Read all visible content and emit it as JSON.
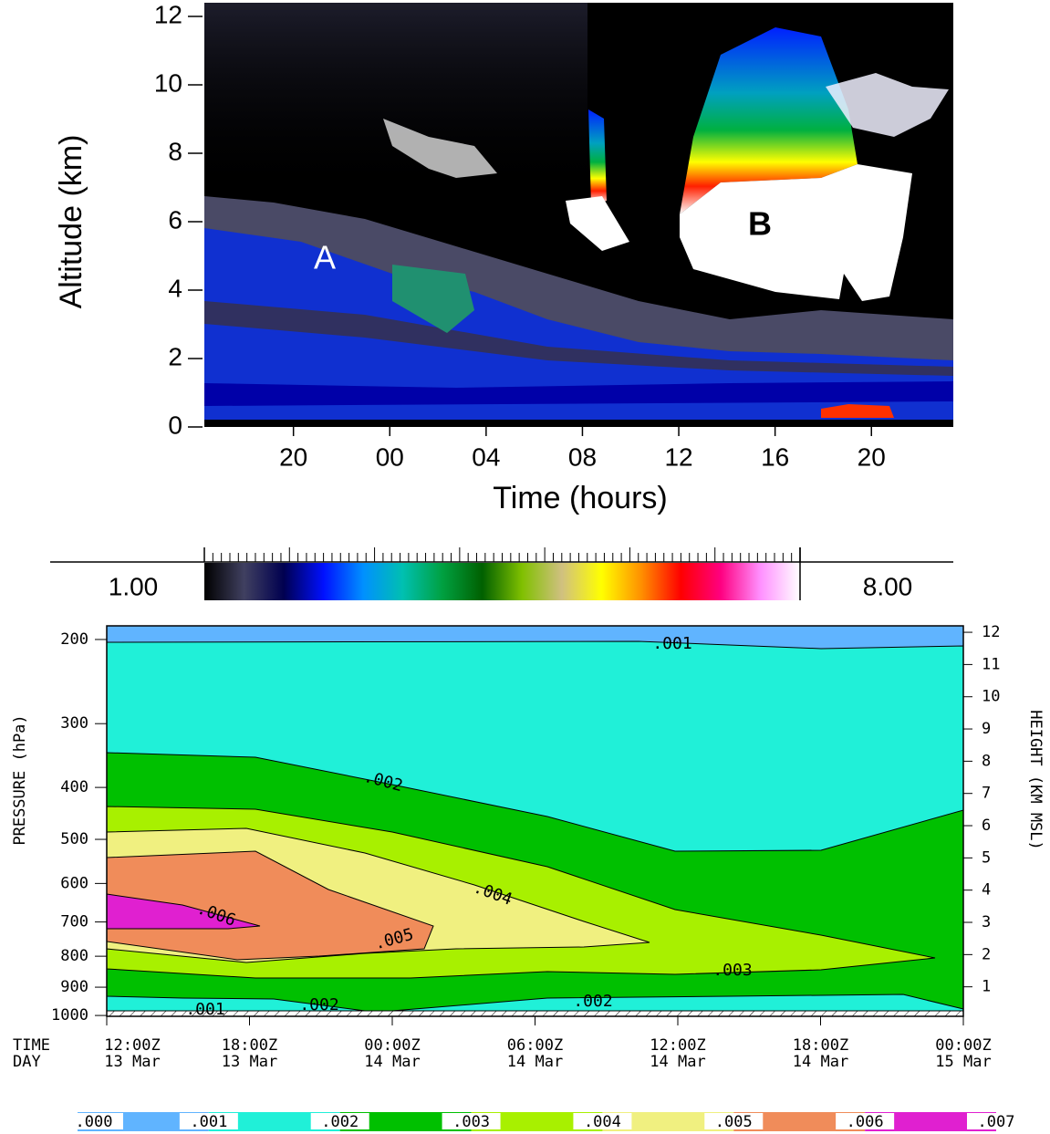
{
  "chart_data": [
    {
      "type": "heatmap",
      "ylabel": "Altitude (km)",
      "xlabel": "Time (hours)",
      "xlim": [
        16.3,
        47.4
      ],
      "xticks": [
        20,
        {
          "value": 24,
          "label": "00"
        },
        {
          "value": 28,
          "label": "04"
        },
        {
          "value": 32,
          "label": "08"
        },
        {
          "value": 36,
          "label": "12"
        },
        {
          "value": 40,
          "label": "16"
        },
        {
          "value": 44,
          "label": "20"
        }
      ],
      "ylim": [
        0,
        12.4
      ],
      "yticks": [
        0,
        2,
        4,
        6,
        8,
        10,
        12
      ],
      "annotations": [
        "A",
        "B"
      ],
      "clim": [
        1,
        8
      ],
      "cticks": [
        {
          "value": 1,
          "label": "1.00"
        },
        {
          "value": 8,
          "label": "8.00"
        }
      ],
      "colormap": [
        "#000000",
        "#404060",
        "#000050",
        "#0010ff",
        "#0090ff",
        "#00c0b0",
        "#00a040",
        "#006000",
        "#80c000",
        "#d0c080",
        "#ffff00",
        "#ff9000",
        "#ff0000",
        "#ff0080",
        "#ff90ff",
        "#ffffff"
      ]
    },
    {
      "type": "contour",
      "ylabel": "PRESSURE (hPa)",
      "y2label": "HEIGHT (KM MSL)",
      "xlim": [
        0,
        36
      ],
      "xticks": [
        {
          "value": 0,
          "label": "12:00Z"
        },
        {
          "value": 6,
          "label": "18:00Z"
        },
        {
          "value": 12,
          "label": "00:00Z"
        },
        {
          "value": 18,
          "label": "06:00Z"
        },
        {
          "value": 24,
          "label": "12:00Z"
        },
        {
          "value": 30,
          "label": "18:00Z"
        },
        {
          "value": 36,
          "label": "00:00Z"
        }
      ],
      "xtick_days": [
        "13 Mar",
        "13 Mar",
        "14 Mar",
        "14 Mar",
        "14 Mar",
        "14 Mar",
        "15 Mar"
      ],
      "xtick_prefixes": [
        "TIME",
        "DAY"
      ],
      "yticks": [
        200,
        300,
        400,
        500,
        600,
        700,
        800,
        900,
        1000
      ],
      "y2lim": [
        0,
        12.2
      ],
      "y2ticks": [
        1,
        2,
        3,
        4,
        5,
        6,
        7,
        8,
        9,
        10,
        11,
        12
      ],
      "levels": [
        {
          "value": 0,
          "label": ".000"
        },
        {
          "value": 0.001,
          "label": ".001"
        },
        {
          "value": 0.002,
          "label": ".002"
        },
        {
          "value": 0.003,
          "label": ".003"
        },
        {
          "value": 0.004,
          "label": ".004"
        },
        {
          "value": 0.005,
          "label": ".005"
        },
        {
          "value": 0.006,
          "label": ".006"
        },
        {
          "value": 0.007,
          "label": ".007"
        }
      ],
      "colors": [
        "#60b4ff",
        "#20f0d8",
        "#00c000",
        "#a8f000",
        "#f0f080",
        "#f08c5a",
        "#e020d0"
      ]
    }
  ]
}
